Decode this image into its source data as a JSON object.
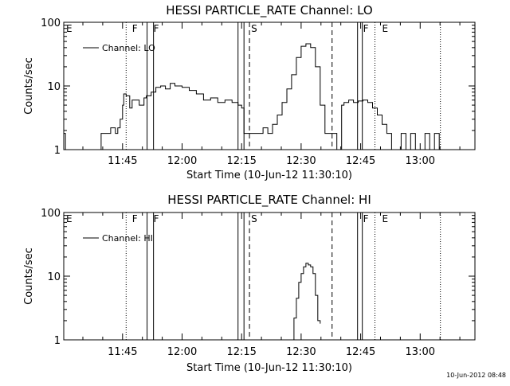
{
  "footer": {
    "timestamp": "10-Jun-2012 08:48"
  },
  "chart_data": [
    {
      "type": "line",
      "title": "HESSI PARTICLE_RATE Channel: LO",
      "xlabel": "Start Time (10-Jun-12 11:30:10)",
      "ylabel": "Counts/sec",
      "y_scale": "log",
      "ylim": [
        1,
        100
      ],
      "y_ticks": [
        1,
        10,
        100
      ],
      "y_tick_labels": [
        "1",
        "10",
        "100"
      ],
      "xlim": [
        11.503,
        13.23
      ],
      "x_ticks": [
        11.75,
        12.0,
        12.25,
        12.5,
        12.75,
        13.0
      ],
      "x_tick_labels": [
        "11:45",
        "12:00",
        "12:15",
        "12:30",
        "12:45",
        "13:00"
      ],
      "legend": {
        "position": "top-left",
        "label": "Channel: LO"
      },
      "flags": [
        {
          "label": "E",
          "x": 11.503
        },
        {
          "label": "F",
          "x": 11.78
        },
        {
          "label": "F",
          "x": 11.87
        },
        {
          "label": "S",
          "x": 12.28
        },
        {
          "label": "F",
          "x": 12.75
        },
        {
          "label": "E",
          "x": 12.83
        }
      ],
      "vlines": [
        {
          "x": 11.765,
          "style": "dotted"
        },
        {
          "x": 11.853,
          "style": "solid"
        },
        {
          "x": 11.88,
          "style": "solid"
        },
        {
          "x": 12.235,
          "style": "solid"
        },
        {
          "x": 12.26,
          "style": "solid"
        },
        {
          "x": 12.283,
          "style": "dashed"
        },
        {
          "x": 12.63,
          "style": "dashed"
        },
        {
          "x": 12.737,
          "style": "solid"
        },
        {
          "x": 12.757,
          "style": "solid"
        },
        {
          "x": 12.81,
          "style": "dotted"
        },
        {
          "x": 13.085,
          "style": "dotted"
        }
      ],
      "series": [
        {
          "name": "Channel: LO",
          "x": [
            11.503,
            11.51,
            11.65,
            11.66,
            11.68,
            11.7,
            11.72,
            11.73,
            11.74,
            11.75,
            11.755,
            11.765,
            11.78,
            11.79,
            11.8,
            11.82,
            11.84,
            11.85,
            11.87,
            11.89,
            11.91,
            11.93,
            11.95,
            11.97,
            12.0,
            12.03,
            12.06,
            12.09,
            12.12,
            12.15,
            12.18,
            12.21,
            12.235,
            12.25,
            12.26,
            12.28,
            12.3,
            12.32,
            12.34,
            12.36,
            12.38,
            12.4,
            12.42,
            12.44,
            12.46,
            12.48,
            12.5,
            12.52,
            12.54,
            12.56,
            12.58,
            12.6,
            12.62,
            12.64,
            12.65,
            12.66,
            12.67,
            12.68,
            12.7,
            12.72,
            12.74,
            12.76,
            12.78,
            12.8,
            12.82,
            12.84,
            12.86,
            12.88,
            12.9,
            12.92,
            12.94,
            12.96,
            12.98,
            13.0,
            13.02,
            13.04,
            13.06,
            13.08,
            13.1
          ],
          "y": [
            1.8,
            1.0,
            1.0,
            1.8,
            1.8,
            2.2,
            1.8,
            2.2,
            3.0,
            5.0,
            7.5,
            7.0,
            4.5,
            6.0,
            6.0,
            5.0,
            6.5,
            7.0,
            8.0,
            9.5,
            10.0,
            9.0,
            11.0,
            10.0,
            9.5,
            8.5,
            7.5,
            6.0,
            6.5,
            5.5,
            6.0,
            5.5,
            5.0,
            4.5,
            1.8,
            1.8,
            1.8,
            1.8,
            2.2,
            1.8,
            2.5,
            3.5,
            5.5,
            9.0,
            15.0,
            28.0,
            42.0,
            46.0,
            40.0,
            20.0,
            5.0,
            1.8,
            1.8,
            1.8,
            1.0,
            1.0,
            5.0,
            5.5,
            6.0,
            5.5,
            5.8,
            6.0,
            5.5,
            4.5,
            3.5,
            2.5,
            1.8,
            1.0,
            1.0,
            1.8,
            1.0,
            1.8,
            1.0,
            1.0,
            1.8,
            1.0,
            1.8,
            1.0,
            1.0
          ]
        }
      ]
    },
    {
      "type": "line",
      "title": "HESSI PARTICLE_RATE Channel: HI",
      "xlabel": "Start Time (10-Jun-12 11:30:10)",
      "ylabel": "Counts/sec",
      "y_scale": "log",
      "ylim": [
        1,
        100
      ],
      "y_ticks": [
        1,
        10,
        100
      ],
      "y_tick_labels": [
        "1",
        "10",
        "100"
      ],
      "xlim": [
        11.503,
        13.23
      ],
      "x_ticks": [
        11.75,
        12.0,
        12.25,
        12.5,
        12.75,
        13.0
      ],
      "x_tick_labels": [
        "11:45",
        "12:00",
        "12:15",
        "12:30",
        "12:45",
        "13:00"
      ],
      "legend": {
        "position": "top-left",
        "label": "Channel: HI"
      },
      "flags": [
        {
          "label": "E",
          "x": 11.503
        },
        {
          "label": "F",
          "x": 11.78
        },
        {
          "label": "F",
          "x": 11.87
        },
        {
          "label": "S",
          "x": 12.28
        },
        {
          "label": "F",
          "x": 12.75
        },
        {
          "label": "E",
          "x": 12.83
        }
      ],
      "vlines": [
        {
          "x": 11.765,
          "style": "dotted"
        },
        {
          "x": 11.853,
          "style": "solid"
        },
        {
          "x": 11.88,
          "style": "solid"
        },
        {
          "x": 12.235,
          "style": "solid"
        },
        {
          "x": 12.26,
          "style": "solid"
        },
        {
          "x": 12.283,
          "style": "dashed"
        },
        {
          "x": 12.63,
          "style": "dashed"
        },
        {
          "x": 12.737,
          "style": "solid"
        },
        {
          "x": 12.757,
          "style": "solid"
        },
        {
          "x": 12.81,
          "style": "dotted"
        },
        {
          "x": 13.085,
          "style": "dotted"
        }
      ],
      "series": [
        {
          "name": "Channel: HI",
          "x": [
            12.46,
            12.47,
            12.48,
            12.49,
            12.5,
            12.51,
            12.52,
            12.53,
            12.54,
            12.55,
            12.56,
            12.57,
            12.58
          ],
          "y": [
            1.0,
            2.2,
            4.5,
            8.0,
            11.0,
            14.0,
            16.0,
            15.0,
            14.0,
            11.0,
            5.0,
            2.0,
            1.8
          ]
        }
      ]
    }
  ]
}
